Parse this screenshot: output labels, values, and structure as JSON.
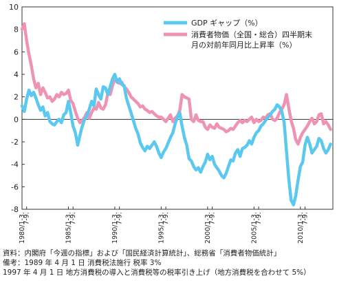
{
  "chart_data": {
    "type": "line",
    "title": "",
    "xlabel": "",
    "ylabel": "",
    "ylim": [
      -8,
      10
    ],
    "yticks": [
      10,
      8,
      6,
      4,
      2,
      0,
      -2,
      -4,
      -6,
      -8
    ],
    "grid": false,
    "legend_position": "top-right",
    "x_tick_labels": [
      "1980/1-3.",
      "7-9.",
      "1985/1-3.",
      "7-9.",
      "1990/1-3.",
      "7-9.",
      "1995/1-3.",
      "7-9.",
      "2000/1-3.",
      "7-9.",
      "2005/1-3.",
      "7-9.",
      "2010/1-3.",
      "7-9."
    ],
    "x_tick_positions": [
      1980.0,
      1980.5,
      1985.0,
      1985.5,
      1990.0,
      1990.5,
      1995.0,
      1995.5,
      2000.0,
      2000.5,
      2005.0,
      2005.5,
      2010.0,
      2010.5
    ],
    "xlim": [
      1980.0,
      2013.5
    ],
    "series": [
      {
        "name": "GDP ギャップ（%）",
        "color": "#5bc8ef",
        "x": [
          1980.0,
          1980.25,
          1980.5,
          1980.75,
          1981.0,
          1981.25,
          1981.5,
          1981.75,
          1982.0,
          1982.25,
          1982.5,
          1982.75,
          1983.0,
          1983.25,
          1983.5,
          1983.75,
          1984.0,
          1984.25,
          1984.5,
          1984.75,
          1985.0,
          1985.25,
          1985.5,
          1985.75,
          1986.0,
          1986.25,
          1986.5,
          1986.75,
          1987.0,
          1987.25,
          1987.5,
          1987.75,
          1988.0,
          1988.25,
          1988.5,
          1988.75,
          1989.0,
          1989.25,
          1989.5,
          1989.75,
          1990.0,
          1990.25,
          1990.5,
          1990.75,
          1991.0,
          1991.25,
          1991.5,
          1991.75,
          1992.0,
          1992.25,
          1992.5,
          1992.75,
          1993.0,
          1993.25,
          1993.5,
          1993.75,
          1994.0,
          1994.25,
          1994.5,
          1994.75,
          1995.0,
          1995.25,
          1995.5,
          1995.75,
          1996.0,
          1996.25,
          1996.5,
          1996.75,
          1997.0,
          1997.25,
          1997.5,
          1997.75,
          1998.0,
          1998.25,
          1998.5,
          1998.75,
          1999.0,
          1999.25,
          1999.5,
          1999.75,
          2000.0,
          2000.25,
          2000.5,
          2000.75,
          2001.0,
          2001.25,
          2001.5,
          2001.75,
          2002.0,
          2002.25,
          2002.5,
          2002.75,
          2003.0,
          2003.25,
          2003.5,
          2003.75,
          2004.0,
          2004.25,
          2004.5,
          2004.75,
          2005.0,
          2005.25,
          2005.5,
          2005.75,
          2006.0,
          2006.25,
          2006.5,
          2006.75,
          2007.0,
          2007.25,
          2007.5,
          2007.75,
          2008.0,
          2008.25,
          2008.5,
          2008.75,
          2009.0,
          2009.25,
          2009.5,
          2009.75,
          2010.0,
          2010.25,
          2010.5,
          2010.75,
          2011.0,
          2011.25,
          2011.5,
          2011.75,
          2012.0,
          2012.25,
          2012.5,
          2012.75,
          2013.0,
          2013.25
        ],
        "values": [
          1.2,
          0.7,
          1.8,
          2.6,
          2.1,
          2.4,
          1.9,
          1.3,
          0.8,
          1.1,
          0.3,
          0.6,
          -0.2,
          -0.4,
          -0.5,
          -0.2,
          0.0,
          -0.3,
          0.4,
          0.6,
          1.6,
          0.6,
          -0.6,
          -1.2,
          -2.3,
          -1.4,
          -0.6,
          0.0,
          0.3,
          0.9,
          1.6,
          1.2,
          2.7,
          2.2,
          1.8,
          2.9,
          2.8,
          2.2,
          2.9,
          3.6,
          4.0,
          3.3,
          3.6,
          3.1,
          3.0,
          1.9,
          1.2,
          0.6,
          -0.1,
          -0.8,
          -1.3,
          -2.1,
          -2.5,
          -2.8,
          -2.4,
          -2.6,
          -2.3,
          -2.0,
          -2.4,
          -3.0,
          -3.4,
          -2.9,
          -2.6,
          -2.1,
          -1.6,
          -1.2,
          -0.4,
          0.2,
          0.6,
          -0.6,
          -1.6,
          -2.3,
          -3.5,
          -3.7,
          -4.2,
          -4.5,
          -4.3,
          -4.7,
          -4.2,
          -3.8,
          -3.1,
          -3.6,
          -3.3,
          -4.0,
          -4.3,
          -4.6,
          -5.0,
          -5.2,
          -4.8,
          -4.2,
          -3.6,
          -3.7,
          -3.0,
          -2.7,
          -3.3,
          -2.6,
          -2.5,
          -2.3,
          -1.9,
          -2.2,
          -1.6,
          -1.2,
          -1.0,
          -0.6,
          -0.4,
          -0.1,
          0.2,
          0.4,
          0.7,
          0.9,
          1.3,
          1.1,
          0.7,
          -0.3,
          -2.8,
          -5.3,
          -7.2,
          -7.6,
          -6.8,
          -5.4,
          -4.2,
          -3.8,
          -2.3,
          -1.6,
          -2.2,
          -3.0,
          -2.7,
          -2.4,
          -1.7,
          -1.9,
          -2.6,
          -3.0,
          -2.7,
          -2.2
        ],
        "line_width": 4.5
      },
      {
        "name": "消費者物価（全国・総合）四半期末月の対前年同月比上昇率（%）",
        "color": "#ef93b5",
        "x": [
          1980.0,
          1980.25,
          1980.5,
          1980.75,
          1981.0,
          1981.25,
          1981.5,
          1981.75,
          1982.0,
          1982.25,
          1982.5,
          1982.75,
          1983.0,
          1983.25,
          1983.5,
          1983.75,
          1984.0,
          1984.25,
          1984.5,
          1984.75,
          1985.0,
          1985.25,
          1985.5,
          1985.75,
          1986.0,
          1986.25,
          1986.5,
          1986.75,
          1987.0,
          1987.25,
          1987.5,
          1987.75,
          1988.0,
          1988.25,
          1988.5,
          1988.75,
          1989.0,
          1989.25,
          1989.5,
          1989.75,
          1990.0,
          1990.25,
          1990.5,
          1990.75,
          1991.0,
          1991.25,
          1991.5,
          1991.75,
          1992.0,
          1992.25,
          1992.5,
          1992.75,
          1993.0,
          1993.25,
          1993.5,
          1993.75,
          1994.0,
          1994.25,
          1994.5,
          1994.75,
          1995.0,
          1995.25,
          1995.5,
          1995.75,
          1996.0,
          1996.25,
          1996.5,
          1996.75,
          1997.0,
          1997.25,
          1997.5,
          1997.75,
          1998.0,
          1998.25,
          1998.5,
          1998.75,
          1999.0,
          1999.25,
          1999.5,
          1999.75,
          2000.0,
          2000.25,
          2000.5,
          2000.75,
          2001.0,
          2001.25,
          2001.5,
          2001.75,
          2002.0,
          2002.25,
          2002.5,
          2002.75,
          2003.0,
          2003.25,
          2003.5,
          2003.75,
          2004.0,
          2004.25,
          2004.5,
          2004.75,
          2005.0,
          2005.25,
          2005.5,
          2005.75,
          2006.0,
          2006.25,
          2006.5,
          2006.75,
          2007.0,
          2007.25,
          2007.5,
          2007.75,
          2008.0,
          2008.25,
          2008.5,
          2008.75,
          2009.0,
          2009.25,
          2009.5,
          2009.75,
          2010.0,
          2010.25,
          2010.5,
          2010.75,
          2011.0,
          2011.25,
          2011.5,
          2011.75,
          2012.0,
          2012.25,
          2012.5,
          2012.75,
          2013.0,
          2013.25
        ],
        "values": [
          8.0,
          8.5,
          7.0,
          5.8,
          4.8,
          3.6,
          2.8,
          3.2,
          2.2,
          2.8,
          2.4,
          1.9,
          2.0,
          1.6,
          1.8,
          2.2,
          2.0,
          2.4,
          2.2,
          2.3,
          2.6,
          1.7,
          1.4,
          0.7,
          0.1,
          -0.3,
          -0.1,
          0.2,
          0.6,
          0.1,
          0.6,
          1.0,
          0.9,
          1.5,
          1.0,
          0.9,
          1.3,
          2.3,
          2.2,
          3.0,
          3.6,
          3.3,
          3.2,
          3.3,
          2.9,
          2.7,
          2.4,
          2.0,
          1.8,
          1.6,
          1.4,
          1.1,
          1.2,
          0.9,
          0.8,
          0.6,
          0.7,
          0.5,
          0.3,
          0.2,
          0.2,
          0.0,
          -0.2,
          0.1,
          0.4,
          -0.2,
          0.1,
          0.3,
          0.8,
          2.2,
          2.0,
          1.9,
          1.8,
          0.0,
          -0.2,
          0.4,
          -0.1,
          -0.2,
          -0.2,
          -0.7,
          -0.9,
          -0.5,
          -0.7,
          -0.8,
          -0.4,
          -0.7,
          -0.8,
          -0.9,
          -1.1,
          -1.0,
          -0.8,
          -0.9,
          -0.6,
          -0.3,
          -0.1,
          -0.3,
          -0.1,
          -0.2,
          0.0,
          0.2,
          -0.3,
          0.0,
          -0.2,
          -0.1,
          0.2,
          0.1,
          0.4,
          0.5,
          0.0,
          -0.1,
          0.1,
          0.6,
          0.9,
          1.3,
          2.2,
          1.0,
          -0.1,
          -0.8,
          -1.8,
          -2.2,
          -1.6,
          -1.2,
          -0.9,
          -0.6,
          -0.2,
          0.1,
          -0.4,
          -0.2,
          0.4,
          0.5,
          -0.4,
          -0.2,
          -0.5,
          -0.9
        ],
        "line_width": 4.5
      }
    ]
  },
  "legend": {
    "gdp_label": "GDP ギャップ（%）",
    "cpi_label_line1": "消費者物価（全国・総合）四半期末",
    "cpi_label_line2": "月の対前年同月比上昇率（%）"
  },
  "notes": {
    "line1": "資料：内閣府「今週の指標」および「国民経済計算統計」、総務省「消費者物価統計」",
    "line2": "備考：1989 年 4 月 1 日 消費税法施行 税率 3%",
    "line3": "1997 年 4 月 1 日 地方消費税の導入と消費税等の税率引き上げ（地方消費税を合わせて 5%）"
  }
}
